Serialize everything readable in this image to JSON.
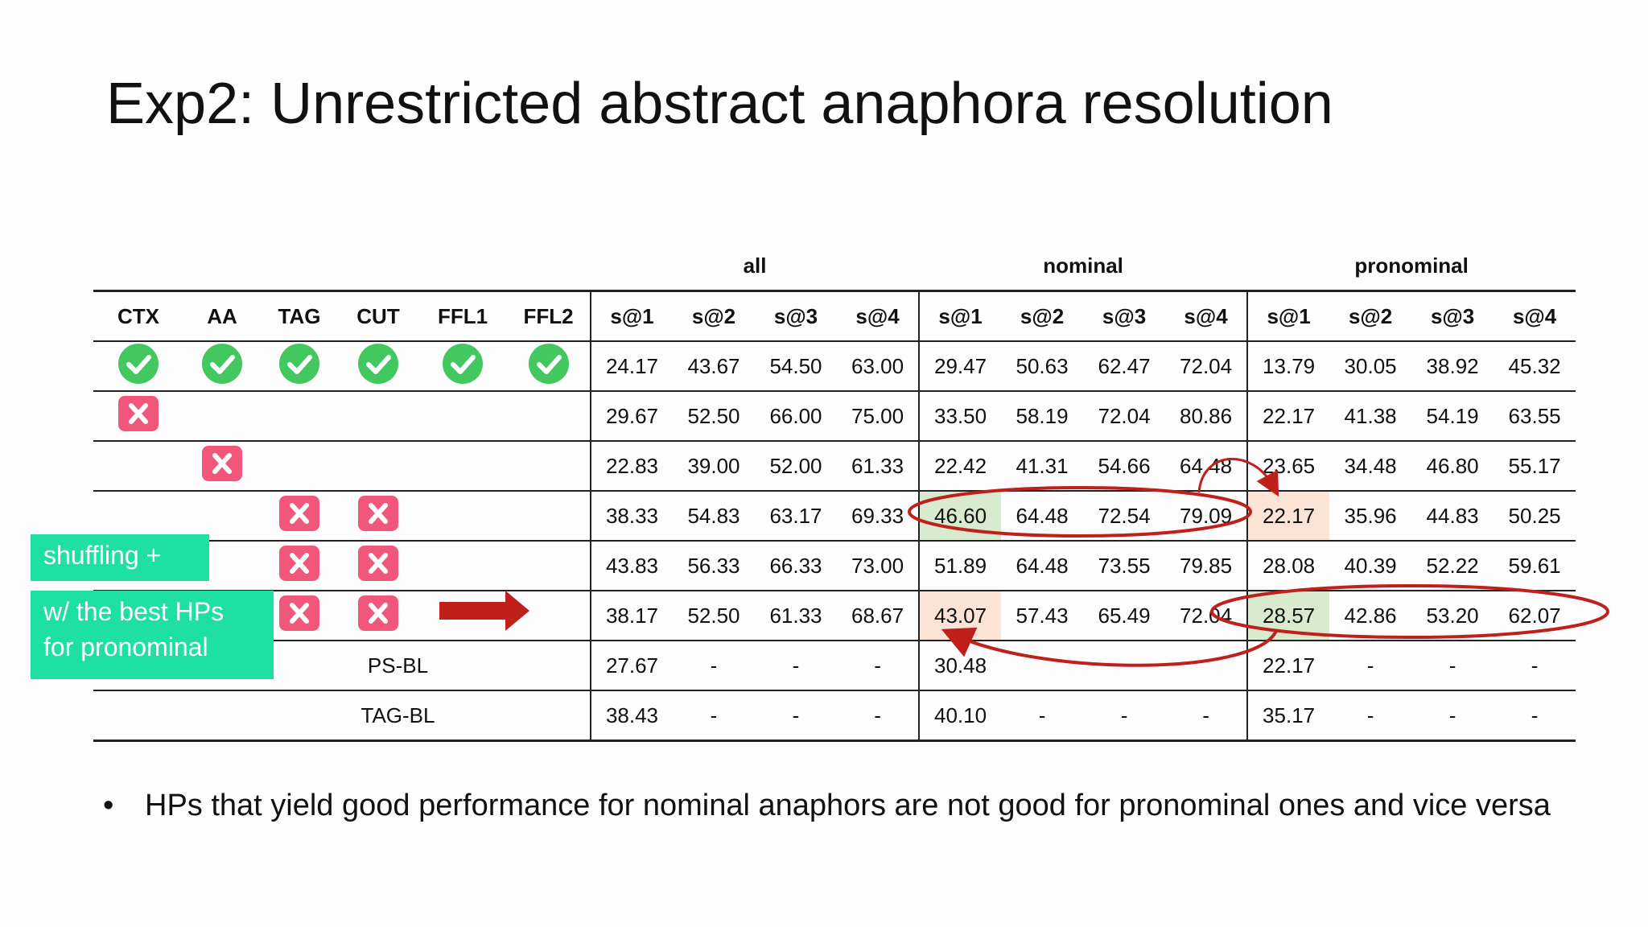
{
  "title": "Exp2: Unrestricted abstract anaphora resolution",
  "colors": {
    "check": "#43c85f",
    "cross": "#f0577a",
    "label_bg": "#1ee0a3",
    "annotation": "#c0201c",
    "highlight_green": "#d8ebcf",
    "highlight_orange": "#fbe3d6"
  },
  "table": {
    "groups": [
      "all",
      "nominal",
      "pronominal"
    ],
    "feature_headers": [
      "CTX",
      "AA",
      "TAG",
      "CUT",
      "FFL1",
      "FFL2"
    ],
    "metric_headers": [
      "s@1",
      "s@2",
      "s@3",
      "s@4",
      "s@1",
      "s@2",
      "s@3",
      "s@4",
      "s@1",
      "s@2",
      "s@3",
      "s@4"
    ],
    "rows": [
      {
        "marks": [
          "check",
          "check",
          "check",
          "check",
          "check",
          "check"
        ],
        "values": [
          "24.17",
          "43.67",
          "54.50",
          "63.00",
          "29.47",
          "50.63",
          "62.47",
          "72.04",
          "13.79",
          "30.05",
          "38.92",
          "45.32"
        ],
        "bold": [],
        "green": [],
        "orange": []
      },
      {
        "marks": [
          "cross",
          "",
          "",
          "",
          "",
          ""
        ],
        "values": [
          "29.67",
          "52.50",
          "66.00",
          "75.00",
          "33.50",
          "58.19",
          "72.04",
          "80.86",
          "22.17",
          "41.38",
          "54.19",
          "63.55"
        ],
        "bold": [
          3
        ],
        "green": [],
        "orange": []
      },
      {
        "marks": [
          "",
          "cross",
          "",
          "",
          "",
          ""
        ],
        "values": [
          "22.83",
          "39.00",
          "52.00",
          "61.33",
          "22.42",
          "41.31",
          "54.66",
          "64.48",
          "23.65",
          "34.48",
          "46.80",
          "55.17"
        ],
        "bold": [],
        "green": [],
        "orange": []
      },
      {
        "marks": [
          "",
          "",
          "cross",
          "cross",
          "",
          ""
        ],
        "values": [
          "38.33",
          "54.83",
          "63.17",
          "69.33",
          "46.60",
          "64.48",
          "72.54",
          "79.09",
          "22.17",
          "35.96",
          "44.83",
          "50.25"
        ],
        "bold": [
          5
        ],
        "green": [
          4
        ],
        "orange": [
          8
        ]
      },
      {
        "marks": [
          "",
          "",
          "cross",
          "cross",
          "",
          ""
        ],
        "values": [
          "43.83",
          "56.33",
          "66.33",
          "73.00",
          "51.89",
          "64.48",
          "73.55",
          "79.85",
          "28.08",
          "40.39",
          "52.22",
          "59.61"
        ],
        "bold": [
          0,
          1,
          2,
          4,
          5,
          6,
          7
        ],
        "green": [],
        "orange": []
      },
      {
        "marks": [
          "",
          "",
          "cross",
          "cross",
          "",
          ""
        ],
        "values": [
          "38.17",
          "52.50",
          "61.33",
          "68.67",
          "43.07",
          "57.43",
          "65.49",
          "72.04",
          "28.57",
          "42.86",
          "53.20",
          "62.07"
        ],
        "bold": [
          9,
          10,
          11
        ],
        "green": [
          8
        ],
        "orange": [
          4
        ]
      }
    ],
    "baselines": [
      {
        "label": "PS-BL",
        "values": [
          "27.67",
          "-",
          "-",
          "-",
          "30.48",
          "",
          "",
          "",
          "22.17",
          "-",
          "-",
          "-"
        ],
        "bold": []
      },
      {
        "label": "TAG-BL",
        "values": [
          "38.43",
          "-",
          "-",
          "-",
          "40.10",
          "-",
          "-",
          "-",
          "35.17",
          "-",
          "-",
          "-"
        ],
        "bold": [
          0,
          3,
          8
        ]
      }
    ]
  },
  "labels": {
    "shuffling": "shuffling +",
    "best_hps_line1": "w/ the best HPs",
    "best_hps_line2": "for pronominal"
  },
  "bullet": "HPs that yield good performance for nominal anaphors are not good for pronominal ones and vice versa"
}
